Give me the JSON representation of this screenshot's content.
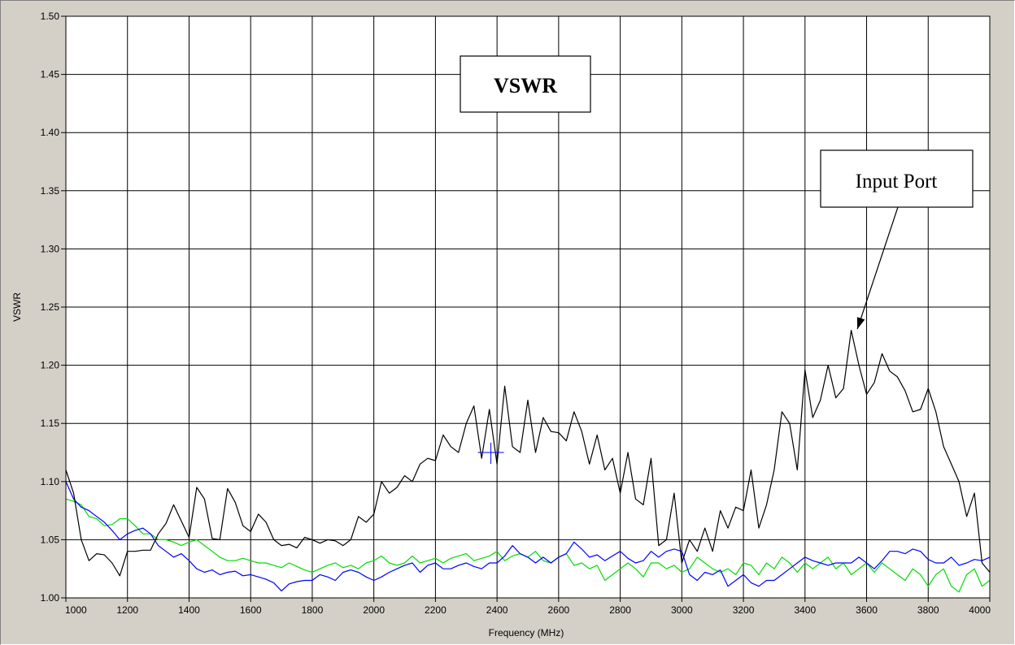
{
  "chart_data": {
    "type": "line",
    "title": "VSWR",
    "xlabel": "Frequency (MHz)",
    "ylabel": "VSWR",
    "xlim": [
      1000,
      4000
    ],
    "ylim": [
      1.0,
      1.5
    ],
    "grid": true,
    "x_ticks": [
      "1000",
      "1200",
      "1400",
      "1600",
      "1800",
      "2000",
      "2200",
      "2400",
      "2600",
      "2800",
      "3000",
      "3200",
      "3400",
      "3600",
      "3800",
      "4000"
    ],
    "y_ticks": [
      "1.00",
      "1.05",
      "1.10",
      "1.15",
      "1.20",
      "1.25",
      "1.30",
      "1.35",
      "1.40",
      "1.45",
      "1.50"
    ],
    "annotation": {
      "text": "Input Port",
      "target_x": 3570,
      "target_y": 1.229
    },
    "cursor": {
      "x": 2380,
      "y": 1.125
    },
    "series": [
      {
        "color": "#000000",
        "x": [
          1000,
          1025,
          1050,
          1075,
          1100,
          1125,
          1150,
          1175,
          1200,
          1225,
          1250,
          1275,
          1300,
          1325,
          1350,
          1375,
          1400,
          1425,
          1450,
          1475,
          1500,
          1525,
          1550,
          1575,
          1600,
          1625,
          1650,
          1675,
          1700,
          1725,
          1750,
          1775,
          1800,
          1825,
          1850,
          1875,
          1900,
          1925,
          1950,
          1975,
          2000,
          2025,
          2050,
          2075,
          2100,
          2125,
          2150,
          2175,
          2200,
          2225,
          2250,
          2275,
          2300,
          2325,
          2350,
          2375,
          2400,
          2425,
          2450,
          2475,
          2500,
          2525,
          2550,
          2575,
          2600,
          2625,
          2650,
          2675,
          2700,
          2725,
          2750,
          2775,
          2800,
          2825,
          2850,
          2875,
          2900,
          2925,
          2950,
          2975,
          3000,
          3025,
          3050,
          3075,
          3100,
          3125,
          3150,
          3175,
          3200,
          3225,
          3250,
          3275,
          3300,
          3325,
          3350,
          3375,
          3400,
          3425,
          3450,
          3475,
          3500,
          3525,
          3550,
          3575,
          3600,
          3625,
          3650,
          3675,
          3700,
          3725,
          3750,
          3775,
          3800,
          3825,
          3850,
          3875,
          3900,
          3925,
          3950,
          3975,
          4000
        ],
        "y": [
          1.11,
          1.09,
          1.05,
          1.032,
          1.038,
          1.037,
          1.03,
          1.019,
          1.04,
          1.04,
          1.041,
          1.041,
          1.055,
          1.064,
          1.08,
          1.066,
          1.052,
          1.095,
          1.085,
          1.051,
          1.05,
          1.094,
          1.082,
          1.062,
          1.057,
          1.072,
          1.065,
          1.05,
          1.045,
          1.046,
          1.043,
          1.052,
          1.05,
          1.047,
          1.05,
          1.049,
          1.045,
          1.05,
          1.07,
          1.065,
          1.072,
          1.1,
          1.09,
          1.095,
          1.105,
          1.1,
          1.115,
          1.12,
          1.118,
          1.14,
          1.13,
          1.125,
          1.15,
          1.165,
          1.12,
          1.162,
          1.115,
          1.182,
          1.13,
          1.125,
          1.17,
          1.125,
          1.155,
          1.143,
          1.142,
          1.135,
          1.16,
          1.143,
          1.115,
          1.14,
          1.11,
          1.12,
          1.09,
          1.125,
          1.085,
          1.08,
          1.12,
          1.045,
          1.05,
          1.09,
          1.03,
          1.05,
          1.04,
          1.06,
          1.04,
          1.075,
          1.06,
          1.078,
          1.075,
          1.11,
          1.06,
          1.08,
          1.11,
          1.16,
          1.15,
          1.11,
          1.196,
          1.155,
          1.17,
          1.2,
          1.172,
          1.18,
          1.23,
          1.2,
          1.175,
          1.185,
          1.21,
          1.195,
          1.19,
          1.178,
          1.16,
          1.162,
          1.18,
          1.16,
          1.13,
          1.115,
          1.1,
          1.07,
          1.09,
          1.03,
          1.022
        ]
      },
      {
        "color": "#0000ff",
        "x": [
          1000,
          1025,
          1050,
          1075,
          1100,
          1125,
          1150,
          1175,
          1200,
          1225,
          1250,
          1275,
          1300,
          1325,
          1350,
          1375,
          1400,
          1425,
          1450,
          1475,
          1500,
          1525,
          1550,
          1575,
          1600,
          1625,
          1650,
          1675,
          1700,
          1725,
          1750,
          1775,
          1800,
          1825,
          1850,
          1875,
          1900,
          1925,
          1950,
          1975,
          2000,
          2025,
          2050,
          2075,
          2100,
          2125,
          2150,
          2175,
          2200,
          2225,
          2250,
          2275,
          2300,
          2325,
          2350,
          2375,
          2400,
          2425,
          2450,
          2475,
          2500,
          2525,
          2550,
          2575,
          2600,
          2625,
          2650,
          2675,
          2700,
          2725,
          2750,
          2775,
          2800,
          2825,
          2850,
          2875,
          2900,
          2925,
          2950,
          2975,
          3000,
          3025,
          3050,
          3075,
          3100,
          3125,
          3150,
          3175,
          3200,
          3225,
          3250,
          3275,
          3300,
          3325,
          3350,
          3375,
          3400,
          3425,
          3450,
          3475,
          3500,
          3525,
          3550,
          3575,
          3600,
          3625,
          3650,
          3675,
          3700,
          3725,
          3750,
          3775,
          3800,
          3825,
          3850,
          3875,
          3900,
          3925,
          3950,
          3975,
          4000
        ],
        "y": [
          1.1,
          1.085,
          1.078,
          1.075,
          1.07,
          1.065,
          1.058,
          1.05,
          1.055,
          1.058,
          1.06,
          1.055,
          1.045,
          1.04,
          1.035,
          1.038,
          1.032,
          1.025,
          1.022,
          1.024,
          1.02,
          1.022,
          1.023,
          1.019,
          1.02,
          1.018,
          1.016,
          1.013,
          1.006,
          1.012,
          1.014,
          1.015,
          1.015,
          1.02,
          1.018,
          1.015,
          1.022,
          1.024,
          1.022,
          1.018,
          1.015,
          1.018,
          1.022,
          1.025,
          1.028,
          1.03,
          1.022,
          1.028,
          1.03,
          1.025,
          1.025,
          1.028,
          1.03,
          1.027,
          1.025,
          1.03,
          1.03,
          1.036,
          1.045,
          1.038,
          1.035,
          1.03,
          1.035,
          1.03,
          1.035,
          1.038,
          1.048,
          1.042,
          1.035,
          1.037,
          1.032,
          1.036,
          1.04,
          1.034,
          1.03,
          1.032,
          1.04,
          1.035,
          1.04,
          1.042,
          1.04,
          1.02,
          1.015,
          1.022,
          1.02,
          1.024,
          1.01,
          1.015,
          1.02,
          1.013,
          1.01,
          1.015,
          1.015,
          1.02,
          1.025,
          1.03,
          1.035,
          1.032,
          1.03,
          1.028,
          1.03,
          1.03,
          1.03,
          1.035,
          1.03,
          1.025,
          1.032,
          1.04,
          1.04,
          1.038,
          1.042,
          1.04,
          1.033,
          1.03,
          1.03,
          1.035,
          1.028,
          1.03,
          1.033,
          1.032,
          1.035
        ]
      },
      {
        "color": "#00dd00",
        "x": [
          1000,
          1025,
          1050,
          1075,
          1100,
          1125,
          1150,
          1175,
          1200,
          1225,
          1250,
          1275,
          1300,
          1325,
          1350,
          1375,
          1400,
          1425,
          1450,
          1475,
          1500,
          1525,
          1550,
          1575,
          1600,
          1625,
          1650,
          1675,
          1700,
          1725,
          1750,
          1775,
          1800,
          1825,
          1850,
          1875,
          1900,
          1925,
          1950,
          1975,
          2000,
          2025,
          2050,
          2075,
          2100,
          2125,
          2150,
          2175,
          2200,
          2225,
          2250,
          2275,
          2300,
          2325,
          2350,
          2375,
          2400,
          2425,
          2450,
          2475,
          2500,
          2525,
          2550,
          2575,
          2600,
          2625,
          2650,
          2675,
          2700,
          2725,
          2750,
          2775,
          2800,
          2825,
          2850,
          2875,
          2900,
          2925,
          2950,
          2975,
          3000,
          3025,
          3050,
          3075,
          3100,
          3125,
          3150,
          3175,
          3200,
          3225,
          3250,
          3275,
          3300,
          3325,
          3350,
          3375,
          3400,
          3425,
          3450,
          3475,
          3500,
          3525,
          3550,
          3575,
          3600,
          3625,
          3650,
          3675,
          3700,
          3725,
          3750,
          3775,
          3800,
          3825,
          3850,
          3875,
          3900,
          3925,
          3950,
          3975,
          4000
        ],
        "y": [
          1.085,
          1.083,
          1.08,
          1.07,
          1.068,
          1.062,
          1.063,
          1.068,
          1.068,
          1.062,
          1.055,
          1.055,
          1.05,
          1.05,
          1.048,
          1.045,
          1.048,
          1.05,
          1.045,
          1.04,
          1.035,
          1.032,
          1.032,
          1.034,
          1.032,
          1.03,
          1.03,
          1.028,
          1.026,
          1.03,
          1.027,
          1.024,
          1.022,
          1.025,
          1.028,
          1.03,
          1.026,
          1.028,
          1.025,
          1.03,
          1.032,
          1.036,
          1.03,
          1.028,
          1.03,
          1.036,
          1.03,
          1.032,
          1.034,
          1.03,
          1.034,
          1.036,
          1.038,
          1.032,
          1.034,
          1.036,
          1.04,
          1.032,
          1.036,
          1.038,
          1.035,
          1.04,
          1.032,
          1.03,
          1.035,
          1.038,
          1.028,
          1.03,
          1.025,
          1.028,
          1.015,
          1.02,
          1.025,
          1.03,
          1.025,
          1.018,
          1.03,
          1.03,
          1.025,
          1.028,
          1.022,
          1.025,
          1.035,
          1.03,
          1.025,
          1.022,
          1.025,
          1.02,
          1.03,
          1.028,
          1.02,
          1.03,
          1.025,
          1.035,
          1.03,
          1.022,
          1.03,
          1.025,
          1.03,
          1.035,
          1.025,
          1.03,
          1.02,
          1.025,
          1.03,
          1.022,
          1.03,
          1.025,
          1.02,
          1.015,
          1.025,
          1.02,
          1.01,
          1.02,
          1.025,
          1.01,
          1.005,
          1.02,
          1.025,
          1.01,
          1.015
        ]
      }
    ]
  }
}
